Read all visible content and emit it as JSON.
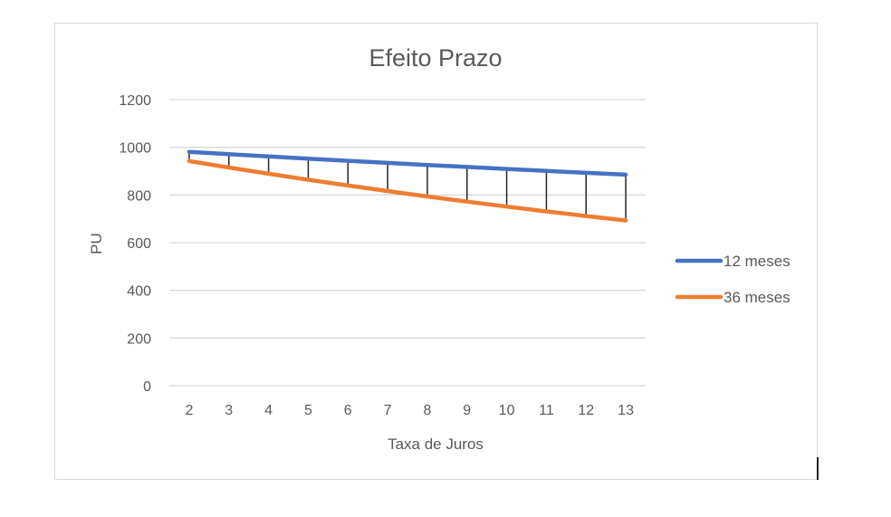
{
  "chart_data": {
    "type": "line",
    "title": "Efeito Prazo",
    "xlabel": "Taxa de Juros",
    "ylabel": "PU",
    "categories": [
      "2",
      "3",
      "4",
      "5",
      "6",
      "7",
      "8",
      "9",
      "10",
      "11",
      "12",
      "13"
    ],
    "series": [
      {
        "name": "12 meses",
        "color": "#4472C4",
        "values": [
          980.4,
          970.9,
          961.5,
          952.4,
          943.4,
          934.6,
          925.9,
          917.4,
          909.1,
          900.9,
          892.9,
          885.0
        ]
      },
      {
        "name": "36 meses",
        "color": "#ED7D31",
        "values": [
          942.3,
          915.1,
          889.0,
          863.8,
          839.6,
          816.3,
          793.8,
          772.2,
          751.3,
          731.2,
          711.8,
          693.1
        ]
      }
    ],
    "yticks": [
      "0",
      "200",
      "400",
      "600",
      "800",
      "1000",
      "1200"
    ],
    "ylim": [
      0,
      1200
    ],
    "grid": true,
    "high_low_lines": true,
    "legend_position": "right"
  }
}
